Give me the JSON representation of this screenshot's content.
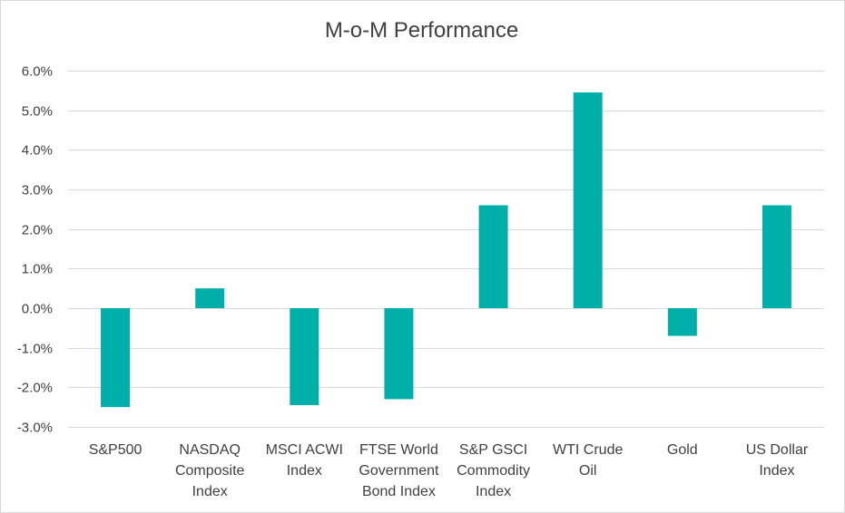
{
  "chart_data": {
    "type": "bar",
    "title": "M-o-M Performance",
    "xlabel": "",
    "ylabel": "",
    "categories": [
      "S&P500",
      "NASDAQ Composite Index",
      "MSCI ACWI Index",
      "FTSE World Government Bond Index",
      "S&P GSCI Commodity Index",
      "WTI Crude Oil",
      "Gold",
      "US Dollar Index"
    ],
    "category_lines": [
      [
        "S&P500"
      ],
      [
        "NASDAQ",
        "Composite",
        "Index"
      ],
      [
        "MSCI ACWI",
        "Index"
      ],
      [
        "FTSE World",
        "Government",
        "Bond Index"
      ],
      [
        "S&P GSCI",
        "Commodity",
        "Index"
      ],
      [
        "WTI Crude",
        "Oil"
      ],
      [
        "Gold"
      ],
      [
        "US Dollar",
        "Index"
      ]
    ],
    "values": [
      -2.5,
      0.5,
      -2.45,
      -2.3,
      2.6,
      5.45,
      -0.7,
      2.6
    ],
    "ylim": [
      -3.0,
      6.0
    ],
    "yticks": [
      6.0,
      5.0,
      4.0,
      3.0,
      2.0,
      1.0,
      0.0,
      -1.0,
      -2.0,
      -3.0
    ],
    "ytick_labels": [
      "6.0%",
      "5.0%",
      "4.0%",
      "3.0%",
      "2.0%",
      "1.0%",
      "0.0%",
      "-1.0%",
      "-2.0%",
      "-3.0%"
    ],
    "grid": true,
    "bar_color": "#00b0a8",
    "grid_color": "#d9d9d9"
  }
}
